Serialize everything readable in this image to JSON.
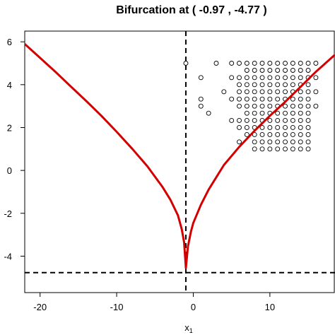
{
  "chart_data": {
    "type": "scatter",
    "title": "Bifurcation at ( -0.97 , -4.77 )",
    "xlabel": "x",
    "xlabel_subscript": "1",
    "ylabel": "",
    "xlim": [
      -22,
      18.5
    ],
    "ylim": [
      -5.7,
      6.5
    ],
    "x_ticks": [
      -20,
      -10,
      0,
      10
    ],
    "y_ticks": [
      -4,
      -2,
      0,
      2,
      4,
      6
    ],
    "grid": false,
    "bifurcation_point": {
      "x": -0.97,
      "y": -4.77
    },
    "reference_lines": [
      {
        "orientation": "vertical",
        "value": -0.97,
        "style": "dashed",
        "color": "#000000"
      },
      {
        "orientation": "horizontal",
        "value": -4.77,
        "style": "dashed",
        "color": "#000000"
      }
    ],
    "curve": {
      "color": "#d40000",
      "points": [
        [
          -22,
          5.9
        ],
        [
          -20,
          5.25
        ],
        [
          -18,
          4.6
        ],
        [
          -16,
          3.92
        ],
        [
          -14,
          3.25
        ],
        [
          -12,
          2.55
        ],
        [
          -10,
          1.8
        ],
        [
          -8,
          1.02
        ],
        [
          -6,
          0.2
        ],
        [
          -4,
          -0.78
        ],
        [
          -3,
          -1.36
        ],
        [
          -2,
          -2.1
        ],
        [
          -1.5,
          -2.75
        ],
        [
          -1.2,
          -3.35
        ],
        [
          -0.97,
          -4.55
        ],
        [
          -0.7,
          -3.55
        ],
        [
          -0.3,
          -2.85
        ],
        [
          0,
          -2.45
        ],
        [
          1,
          -1.6
        ],
        [
          2,
          -0.9
        ],
        [
          4,
          0.25
        ],
        [
          6,
          1.1
        ],
        [
          8,
          1.85
        ],
        [
          10,
          2.55
        ],
        [
          12,
          3.2
        ],
        [
          14,
          3.9
        ],
        [
          16,
          4.6
        ],
        [
          18.5,
          5.4
        ]
      ]
    },
    "scatter": {
      "marker": "open-circle",
      "color": "#000000",
      "points": [
        [
          -0.97,
          5
        ],
        [
          1,
          4.33
        ],
        [
          3,
          5
        ],
        [
          5,
          5
        ],
        [
          6,
          5
        ],
        [
          7,
          5
        ],
        [
          8,
          5
        ],
        [
          9,
          5
        ],
        [
          10,
          5
        ],
        [
          11,
          5
        ],
        [
          12,
          5
        ],
        [
          13,
          5
        ],
        [
          14,
          5
        ],
        [
          15,
          5
        ],
        [
          16,
          5
        ],
        [
          7,
          4.67
        ],
        [
          8,
          4.67
        ],
        [
          9,
          4.67
        ],
        [
          10,
          4.67
        ],
        [
          11,
          4.67
        ],
        [
          12,
          4.67
        ],
        [
          13,
          4.67
        ],
        [
          14,
          4.67
        ],
        [
          15,
          4.67
        ],
        [
          5,
          4.33
        ],
        [
          6,
          4.33
        ],
        [
          7,
          4.33
        ],
        [
          8,
          4.33
        ],
        [
          9,
          4.33
        ],
        [
          10,
          4.33
        ],
        [
          11,
          4.33
        ],
        [
          12,
          4.33
        ],
        [
          13,
          4.33
        ],
        [
          14,
          4.33
        ],
        [
          15,
          4.33
        ],
        [
          16,
          4.33
        ],
        [
          6,
          4
        ],
        [
          7,
          4
        ],
        [
          8,
          4
        ],
        [
          9,
          4
        ],
        [
          10,
          4
        ],
        [
          11,
          4
        ],
        [
          12,
          4
        ],
        [
          13,
          4
        ],
        [
          14,
          4
        ],
        [
          15,
          4
        ],
        [
          4,
          3.67
        ],
        [
          6,
          3.67
        ],
        [
          7,
          3.67
        ],
        [
          8,
          3.67
        ],
        [
          9,
          3.67
        ],
        [
          10,
          3.67
        ],
        [
          11,
          3.67
        ],
        [
          12,
          3.67
        ],
        [
          13,
          3.67
        ],
        [
          14,
          3.67
        ],
        [
          15,
          3.67
        ],
        [
          16,
          3.67
        ],
        [
          1,
          3.33
        ],
        [
          5,
          3.33
        ],
        [
          6,
          3.33
        ],
        [
          7,
          3.33
        ],
        [
          8,
          3.33
        ],
        [
          9,
          3.33
        ],
        [
          10,
          3.33
        ],
        [
          11,
          3.33
        ],
        [
          12,
          3.33
        ],
        [
          13,
          3.33
        ],
        [
          14,
          3.33
        ],
        [
          15,
          3.33
        ],
        [
          1,
          3
        ],
        [
          6,
          3
        ],
        [
          7,
          3
        ],
        [
          8,
          3
        ],
        [
          9,
          3
        ],
        [
          10,
          3
        ],
        [
          11,
          3
        ],
        [
          12,
          3
        ],
        [
          13,
          3
        ],
        [
          14,
          3
        ],
        [
          15,
          3
        ],
        [
          16,
          3
        ],
        [
          2,
          2.67
        ],
        [
          7,
          2.67
        ],
        [
          8,
          2.67
        ],
        [
          9,
          2.67
        ],
        [
          10,
          2.67
        ],
        [
          11,
          2.67
        ],
        [
          12,
          2.67
        ],
        [
          13,
          2.67
        ],
        [
          14,
          2.67
        ],
        [
          15,
          2.67
        ],
        [
          5,
          2.33
        ],
        [
          6,
          2.33
        ],
        [
          7,
          2.33
        ],
        [
          8,
          2.33
        ],
        [
          9,
          2.33
        ],
        [
          10,
          2.33
        ],
        [
          11,
          2.33
        ],
        [
          12,
          2.33
        ],
        [
          13,
          2.33
        ],
        [
          14,
          2.33
        ],
        [
          15,
          2.33
        ],
        [
          6,
          2
        ],
        [
          7,
          2
        ],
        [
          8,
          2
        ],
        [
          9,
          2
        ],
        [
          10,
          2
        ],
        [
          11,
          2
        ],
        [
          12,
          2
        ],
        [
          13,
          2
        ],
        [
          14,
          2
        ],
        [
          15,
          2
        ],
        [
          7,
          1.67
        ],
        [
          8,
          1.67
        ],
        [
          9,
          1.67
        ],
        [
          10,
          1.67
        ],
        [
          11,
          1.67
        ],
        [
          12,
          1.67
        ],
        [
          13,
          1.67
        ],
        [
          14,
          1.67
        ],
        [
          15,
          1.67
        ],
        [
          8,
          1.33
        ],
        [
          9,
          1.33
        ],
        [
          10,
          1.33
        ],
        [
          11,
          1.33
        ],
        [
          12,
          1.33
        ],
        [
          13,
          1.33
        ],
        [
          14,
          1.33
        ],
        [
          15,
          1.33
        ],
        [
          6,
          1.33
        ],
        [
          8,
          1
        ],
        [
          9,
          1
        ],
        [
          10,
          1
        ],
        [
          11,
          1
        ],
        [
          12,
          1
        ],
        [
          13,
          1
        ],
        [
          14,
          1
        ],
        [
          15,
          1
        ]
      ]
    }
  }
}
